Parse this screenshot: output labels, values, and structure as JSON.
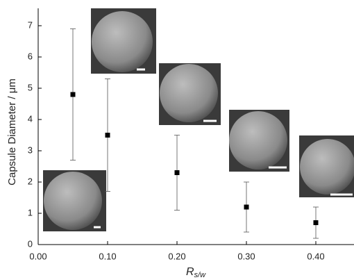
{
  "chart_data": {
    "type": "scatter",
    "x_label": {
      "main": "R",
      "sub": "s/w"
    },
    "y_label": "Capsule Diameter / μm",
    "series": [
      {
        "color": "#000000",
        "x": [
          0.05,
          0.1,
          0.2,
          0.3,
          0.4
        ],
        "values": [
          4.8,
          3.5,
          2.3,
          1.2,
          0.7
        ],
        "errors": [
          2.1,
          1.8,
          1.2,
          0.8,
          0.5
        ]
      }
    ],
    "xlim": [
      0,
      0.45
    ],
    "xticks": [
      {
        "value": 0,
        "label": "0.00"
      },
      {
        "value": 0.1,
        "label": "0.10"
      },
      {
        "value": 0.2,
        "label": "0.20"
      },
      {
        "value": 0.3,
        "label": "0.30"
      },
      {
        "value": 0.4,
        "label": "0.40"
      }
    ],
    "ylim": [
      0,
      7.5
    ],
    "yticks": [
      0,
      1,
      2,
      3,
      4,
      5,
      6,
      7
    ]
  }
}
